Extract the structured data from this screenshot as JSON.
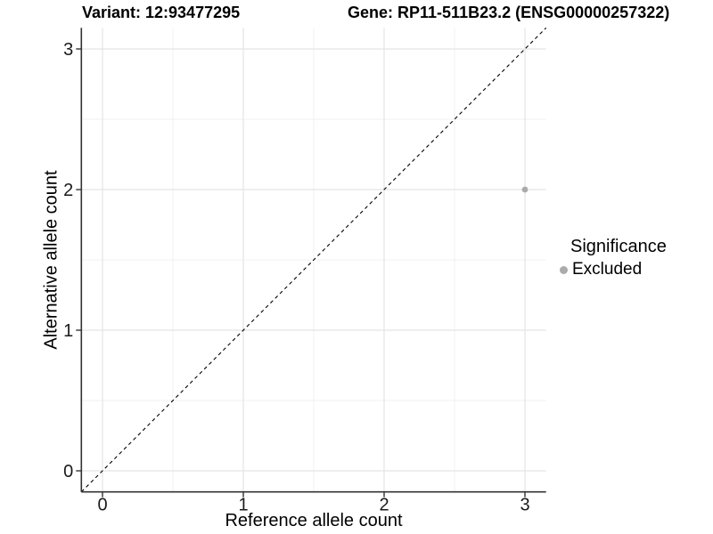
{
  "header": {
    "variant_title": "Variant: 12:93477295",
    "gene_title": "Gene: RP11-511B23.2 (ENSG00000257322)"
  },
  "plot": {
    "x_axis_label": "Reference allele count",
    "y_axis_label": "Alternative allele count"
  },
  "legend": {
    "title": "Significance",
    "items": [
      {
        "label": "Excluded",
        "color": "#ababab"
      }
    ]
  },
  "chart_data": {
    "type": "scatter",
    "title": "Variant: 12:93477295 / Gene: RP11-511B23.2 (ENSG00000257322)",
    "xlabel": "Reference allele count",
    "ylabel": "Alternative allele count",
    "xlim": [
      -0.15,
      3.15
    ],
    "ylim": [
      -0.15,
      3.15
    ],
    "x_ticks": [
      0,
      1,
      2,
      3
    ],
    "y_ticks": [
      0,
      1,
      2,
      3
    ],
    "x_minor_ticks": [
      0.5,
      1.5,
      2.5
    ],
    "y_minor_ticks": [
      0.5,
      1.5,
      2.5
    ],
    "grid": true,
    "legend_position": "right",
    "series": [
      {
        "name": "Excluded",
        "color": "#ababab",
        "points": [
          {
            "x": 3,
            "y": 2
          }
        ]
      }
    ],
    "reference_line": {
      "type": "identity",
      "slope": 1,
      "intercept": 0,
      "style": "dashed",
      "color": "#000000"
    }
  },
  "style": {
    "background": "#ffffff",
    "grid_major_color": "#e4e4e4",
    "grid_minor_color": "#f0f0f0",
    "axis_line_color": "#333333",
    "tick_label_color": "#1a1a1a",
    "point_color": "#ababab"
  }
}
